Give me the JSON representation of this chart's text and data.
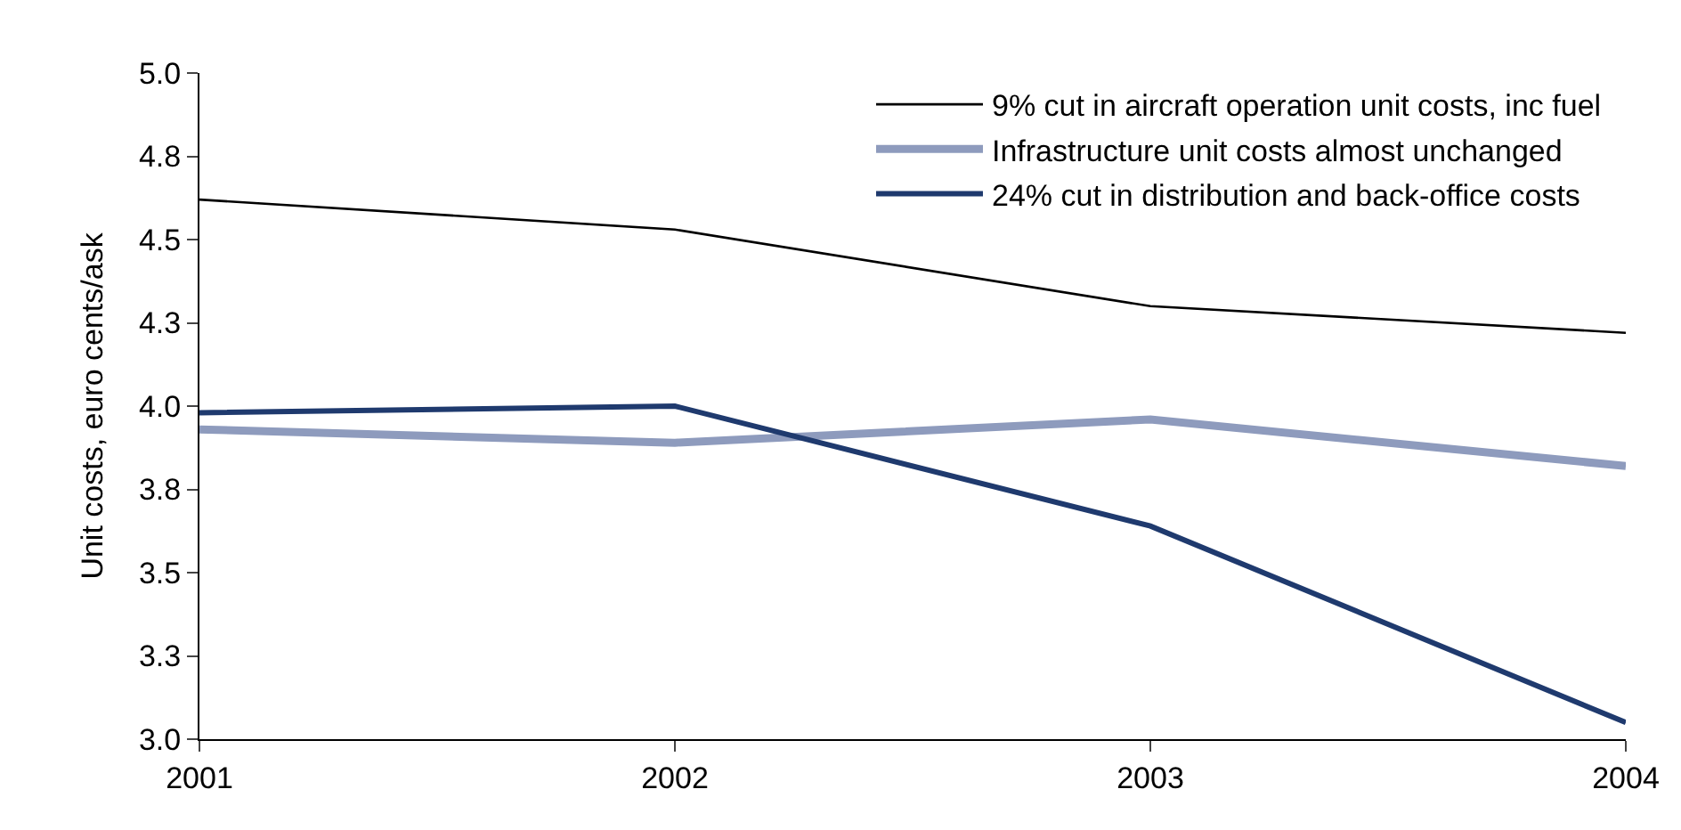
{
  "chart_data": {
    "type": "line",
    "ylabel": "Unit costs, euro cents/ask",
    "x": [
      2001,
      2002,
      2003,
      2004
    ],
    "series": [
      {
        "name": "9% cut in aircraft operation unit costs, inc fuel",
        "color": "#000000",
        "values": [
          4.62,
          4.53,
          4.3,
          4.22
        ]
      },
      {
        "name": "Infrastructure unit costs almost unchanged",
        "color": "#8e9bbd",
        "values": [
          3.93,
          3.89,
          3.96,
          3.82
        ]
      },
      {
        "name": "24% cut in distribution and back-office costs",
        "color": "#1f3a6e",
        "values": [
          3.98,
          4.0,
          3.64,
          3.05
        ]
      }
    ],
    "xlim": [
      2001,
      2004
    ],
    "xticks": [
      2001,
      2002,
      2003,
      2004
    ],
    "ylim": [
      3.0,
      5.0
    ],
    "yticks": [
      {
        "value": 3,
        "label": "3.0"
      },
      {
        "value": 3.25,
        "label": "3.3"
      },
      3.5,
      {
        "value": 3.75,
        "label": "3.8"
      },
      {
        "value": 4,
        "label": "4.0"
      },
      {
        "value": 4.25,
        "label": "4.3"
      },
      4.5,
      {
        "value": 4.75,
        "label": "4.8"
      },
      {
        "value": 5,
        "label": "5.0"
      }
    ],
    "legend": "top right",
    "marker": "none",
    "line_style": "solid"
  }
}
